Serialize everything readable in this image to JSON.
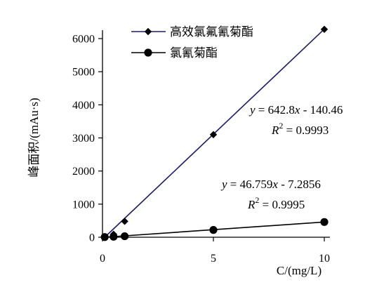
{
  "chart_data": {
    "type": "scatter",
    "title": "",
    "xlabel": "C/(mg/L)",
    "ylabel": "峰面积/(mAu·s)",
    "xlim": [
      0,
      10
    ],
    "ylim": [
      0,
      6000
    ],
    "x_ticks": [
      0,
      5,
      10
    ],
    "y_ticks": [
      0,
      1000,
      2000,
      3000,
      4000,
      5000,
      6000
    ],
    "grid": false,
    "legend_position": "top-center",
    "series": [
      {
        "name": "高效氯氟氰菊酯",
        "marker": "diamond",
        "color": "#000000",
        "fit_color": "#1a1a6e",
        "x": [
          0.1,
          0.5,
          1,
          5,
          10
        ],
        "y": [
          10,
          90,
          480,
          3100,
          6280
        ],
        "fit": {
          "slope": 642.8,
          "intercept": -140.46,
          "r2": 0.9993
        }
      },
      {
        "name": "氯氰菊酯",
        "marker": "circle",
        "color": "#000000",
        "fit_color": "#000000",
        "x": [
          0.1,
          0.5,
          1,
          5,
          10
        ],
        "y": [
          5,
          15,
          30,
          220,
          460
        ],
        "fit": {
          "slope": 46.759,
          "intercept": -7.2856,
          "r2": 0.9995
        }
      }
    ],
    "annotations": [
      {
        "series": 0,
        "equation": [
          "y",
          " = 642.8",
          "x",
          " - 140.46"
        ],
        "r2_text": " = 0.9993"
      },
      {
        "series": 1,
        "equation": [
          "y",
          " = 46.759",
          "x",
          " - 7.2856"
        ],
        "r2_text": " = 0.9995"
      }
    ]
  }
}
